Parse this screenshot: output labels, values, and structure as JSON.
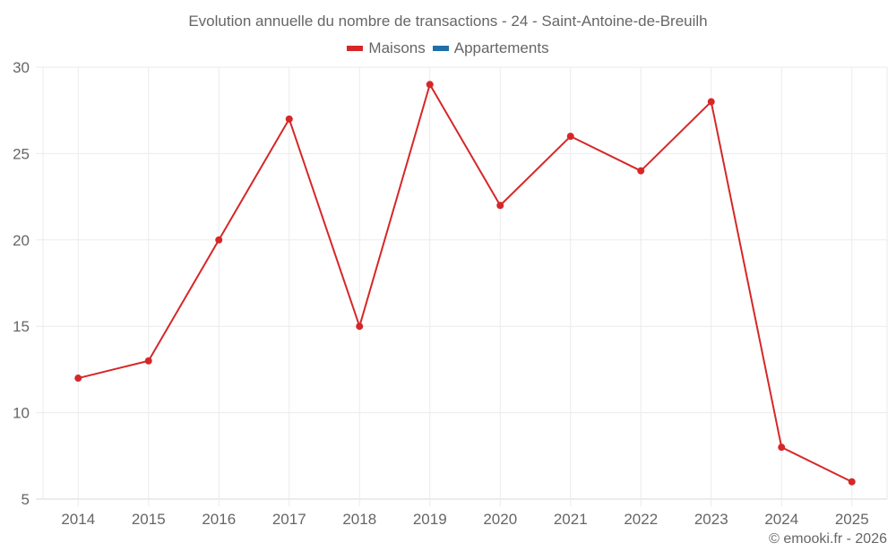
{
  "title": "Evolution annuelle du nombre de transactions - 24 - Saint-Antoine-de-Breuilh",
  "legend": [
    {
      "label": "Maisons",
      "color": "#d62728"
    },
    {
      "label": "Appartements",
      "color": "#1f6fa8"
    }
  ],
  "credit": "© emooki.fr - 2026",
  "colors": {
    "grid": "#ebebeb",
    "axis": "#d9d9d9",
    "text": "#666666",
    "maisons": "#d62728",
    "appartements": "#1f6fa8"
  },
  "chart_data": {
    "type": "line",
    "title": "Evolution annuelle du nombre de transactions - 24 - Saint-Antoine-de-Breuilh",
    "xlabel": "",
    "ylabel": "",
    "categories": [
      "2014",
      "2015",
      "2016",
      "2017",
      "2018",
      "2019",
      "2020",
      "2021",
      "2022",
      "2023",
      "2024",
      "2025"
    ],
    "series": [
      {
        "name": "Maisons",
        "color": "#d62728",
        "values": [
          12,
          13,
          20,
          27,
          15,
          29,
          22,
          26,
          24,
          28,
          8,
          6
        ]
      },
      {
        "name": "Appartements",
        "color": "#1f6fa8",
        "values": []
      }
    ],
    "ylim": [
      5,
      30
    ],
    "yticks": [
      5,
      10,
      15,
      20,
      25,
      30
    ],
    "grid": true,
    "legend_position": "top"
  }
}
